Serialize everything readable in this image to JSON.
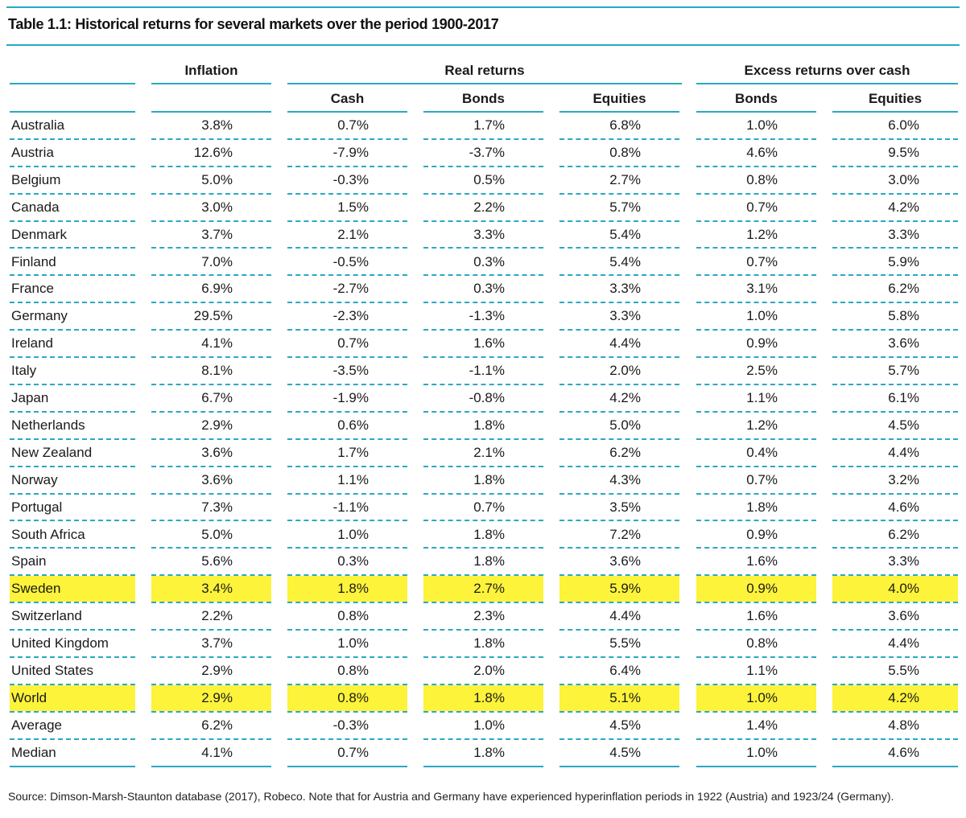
{
  "title": "Table 1.1: Historical returns for several markets over the period 1900-2017",
  "headers": {
    "inflation": "Inflation",
    "real_returns": "Real returns",
    "excess_returns": "Excess returns over cash",
    "sub": [
      "Cash",
      "Bonds",
      "Equities",
      "Bonds",
      "Equities"
    ]
  },
  "rows": [
    {
      "country": "Australia",
      "values": [
        "3.8%",
        "0.7%",
        "1.7%",
        "6.8%",
        "1.0%",
        "6.0%"
      ]
    },
    {
      "country": "Austria",
      "values": [
        "12.6%",
        "-7.9%",
        "-3.7%",
        "0.8%",
        "4.6%",
        "9.5%"
      ]
    },
    {
      "country": "Belgium",
      "values": [
        "5.0%",
        "-0.3%",
        "0.5%",
        "2.7%",
        "0.8%",
        "3.0%"
      ]
    },
    {
      "country": "Canada",
      "values": [
        "3.0%",
        "1.5%",
        "2.2%",
        "5.7%",
        "0.7%",
        "4.2%"
      ]
    },
    {
      "country": "Denmark",
      "values": [
        "3.7%",
        "2.1%",
        "3.3%",
        "5.4%",
        "1.2%",
        "3.3%"
      ]
    },
    {
      "country": "Finland",
      "values": [
        "7.0%",
        "-0.5%",
        "0.3%",
        "5.4%",
        "0.7%",
        "5.9%"
      ]
    },
    {
      "country": "France",
      "values": [
        "6.9%",
        "-2.7%",
        "0.3%",
        "3.3%",
        "3.1%",
        "6.2%"
      ]
    },
    {
      "country": "Germany",
      "values": [
        "29.5%",
        "-2.3%",
        "-1.3%",
        "3.3%",
        "1.0%",
        "5.8%"
      ]
    },
    {
      "country": "Ireland",
      "values": [
        "4.1%",
        "0.7%",
        "1.6%",
        "4.4%",
        "0.9%",
        "3.6%"
      ]
    },
    {
      "country": "Italy",
      "values": [
        "8.1%",
        "-3.5%",
        "-1.1%",
        "2.0%",
        "2.5%",
        "5.7%"
      ]
    },
    {
      "country": "Japan",
      "values": [
        "6.7%",
        "-1.9%",
        "-0.8%",
        "4.2%",
        "1.1%",
        "6.1%"
      ]
    },
    {
      "country": "Netherlands",
      "values": [
        "2.9%",
        "0.6%",
        "1.8%",
        "5.0%",
        "1.2%",
        "4.5%"
      ]
    },
    {
      "country": "New Zealand",
      "values": [
        "3.6%",
        "1.7%",
        "2.1%",
        "6.2%",
        "0.4%",
        "4.4%"
      ]
    },
    {
      "country": "Norway",
      "values": [
        "3.6%",
        "1.1%",
        "1.8%",
        "4.3%",
        "0.7%",
        "3.2%"
      ]
    },
    {
      "country": "Portugal",
      "values": [
        "7.3%",
        "-1.1%",
        "0.7%",
        "3.5%",
        "1.8%",
        "4.6%"
      ]
    },
    {
      "country": "South Africa",
      "values": [
        "5.0%",
        "1.0%",
        "1.8%",
        "7.2%",
        "0.9%",
        "6.2%"
      ]
    },
    {
      "country": "Spain",
      "values": [
        "5.6%",
        "0.3%",
        "1.8%",
        "3.6%",
        "1.6%",
        "3.3%"
      ]
    },
    {
      "country": "Sweden",
      "values": [
        "3.4%",
        "1.8%",
        "2.7%",
        "5.9%",
        "0.9%",
        "4.0%"
      ],
      "highlight": true
    },
    {
      "country": "Switzerland",
      "values": [
        "2.2%",
        "0.8%",
        "2.3%",
        "4.4%",
        "1.6%",
        "3.6%"
      ]
    },
    {
      "country": "United Kingdom",
      "values": [
        "3.7%",
        "1.0%",
        "1.8%",
        "5.5%",
        "0.8%",
        "4.4%"
      ]
    },
    {
      "country": "United States",
      "values": [
        "2.9%",
        "0.8%",
        "2.0%",
        "6.4%",
        "1.1%",
        "5.5%"
      ]
    },
    {
      "country": "World",
      "values": [
        "2.9%",
        "0.8%",
        "1.8%",
        "5.1%",
        "1.0%",
        "4.2%"
      ],
      "highlight": true
    },
    {
      "country": "Average",
      "values": [
        "6.2%",
        "-0.3%",
        "1.0%",
        "4.5%",
        "1.4%",
        "4.8%"
      ]
    },
    {
      "country": "Median",
      "values": [
        "4.1%",
        "0.7%",
        "1.8%",
        "4.5%",
        "1.0%",
        "4.6%"
      ]
    }
  ],
  "source": "Source: Dimson-Marsh-Staunton database (2017), Robeco. Note that for Austria and Germany have experienced hyperinflation periods in 1922 (Austria) and 1923/24 (Germany).",
  "colors": {
    "accent": "#29a9c4",
    "highlight": "#fcf33a"
  }
}
